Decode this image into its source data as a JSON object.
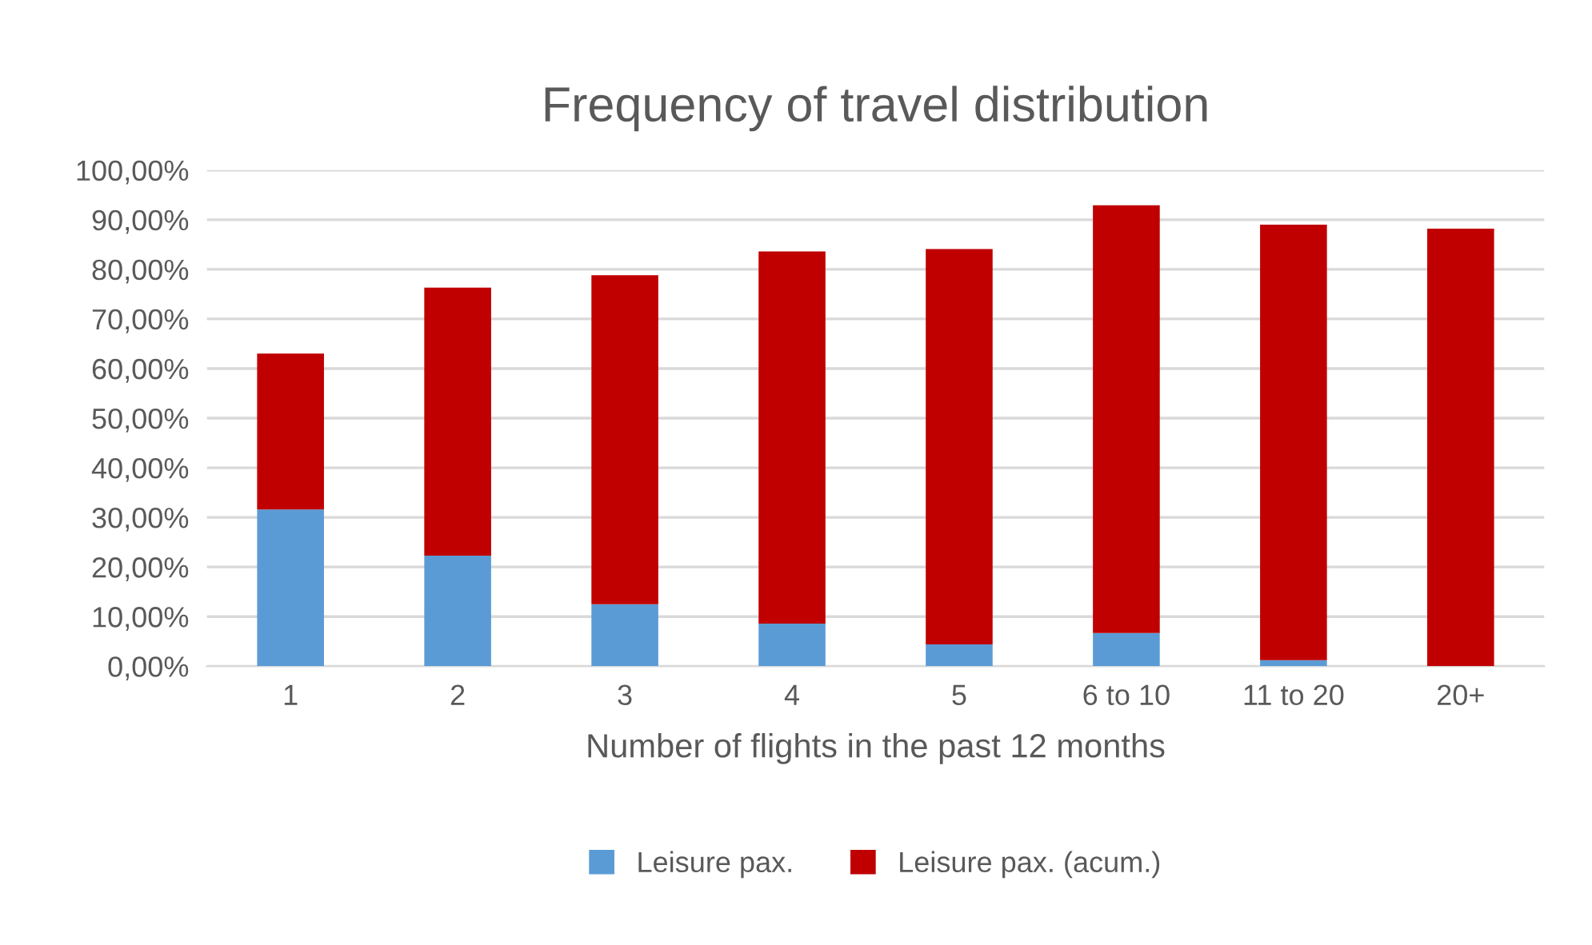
{
  "chart_data": {
    "type": "bar",
    "title": "Frequency of travel distribution",
    "xlabel": "Number of flights in the past 12 months",
    "categories": [
      "1",
      "2",
      "3",
      "4",
      "5",
      "6 to 10",
      "11 to 20",
      "20+"
    ],
    "stacked": true,
    "series": [
      {
        "name": "Leisure pax.",
        "color": "#5b9bd5",
        "values": [
          31.6,
          22.3,
          12.5,
          8.6,
          4.4,
          6.7,
          1.2,
          0
        ]
      },
      {
        "name": "Leisure pax. (acum.)",
        "color": "#c00000",
        "values": [
          31.4,
          54.0,
          66.3,
          75.0,
          79.7,
          86.2,
          87.8,
          88.2
        ]
      }
    ],
    "ylim": [
      0,
      100
    ],
    "yticks": [
      {
        "value": 0,
        "label": "0,00%"
      },
      {
        "value": 10,
        "label": "10,00%"
      },
      {
        "value": 20,
        "label": "20,00%"
      },
      {
        "value": 30,
        "label": "30,00%"
      },
      {
        "value": 40,
        "label": "40,00%"
      },
      {
        "value": 50,
        "label": "50,00%"
      },
      {
        "value": 60,
        "label": "60,00%"
      },
      {
        "value": 70,
        "label": "70,00%"
      },
      {
        "value": 80,
        "label": "80,00%"
      },
      {
        "value": 90,
        "label": "90,00%"
      },
      {
        "value": 100,
        "label": "100,00%"
      }
    ],
    "grid": "y",
    "legend": "bottom"
  }
}
